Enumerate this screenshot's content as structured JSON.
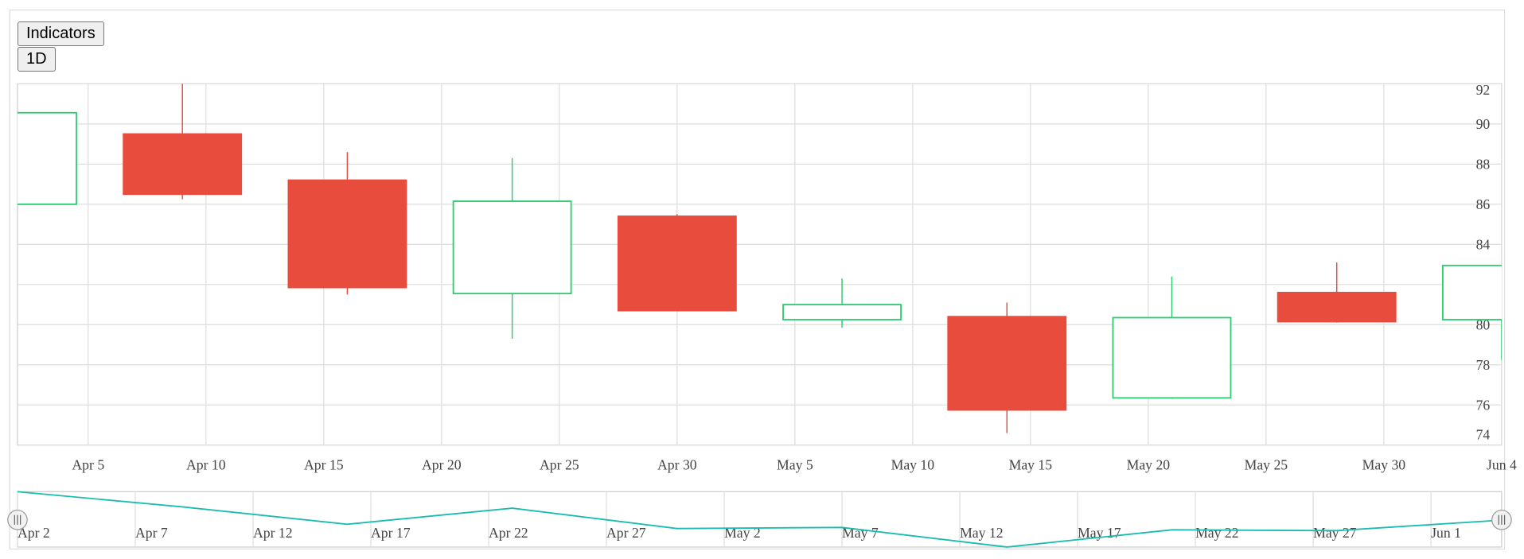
{
  "toolbar": {
    "buttons": [
      "Indicators",
      "1D"
    ]
  },
  "chart_data": {
    "type": "candlestick",
    "x": [
      "Apr 2",
      "Apr 9",
      "Apr 16",
      "Apr 23",
      "Apr 30",
      "May 7",
      "May 14",
      "May 21",
      "May 28",
      "Jun 4"
    ],
    "open": [
      86.0,
      89.5,
      87.2,
      81.55,
      85.4,
      80.25,
      80.4,
      76.35,
      81.6,
      80.25
    ],
    "high": [
      90.6,
      92.0,
      88.6,
      88.3,
      85.5,
      82.3,
      81.1,
      82.4,
      83.1,
      82.95
    ],
    "low": [
      86.0,
      86.25,
      81.5,
      79.3,
      80.7,
      79.85,
      74.6,
      76.3,
      80.1,
      78.25
    ],
    "close": [
      90.56,
      86.5,
      81.85,
      86.15,
      80.7,
      81.0,
      75.75,
      80.35,
      80.15,
      82.95
    ],
    "up_color": "#2ecc71",
    "down_color": "#e74c3c",
    "xlim": [
      "Apr 2",
      "Jun 4"
    ],
    "xticks": [
      "Apr 5",
      "Apr 10",
      "Apr 15",
      "Apr 20",
      "Apr 25",
      "Apr 30",
      "May 5",
      "May 10",
      "May 15",
      "May 20",
      "May 25",
      "May 30",
      "Jun 4"
    ],
    "ylim": [
      74,
      92
    ],
    "yticks": [
      74,
      76,
      78,
      80,
      82,
      84,
      86,
      88,
      90,
      92
    ],
    "grid": true,
    "navigator": {
      "color": "#1abcb0",
      "xticks": [
        "Apr 2",
        "Apr 7",
        "Apr 12",
        "Apr 17",
        "Apr 22",
        "Apr 27",
        "May 2",
        "May 7",
        "May 12",
        "May 17",
        "May 22",
        "May 27",
        "Jun 1"
      ]
    }
  }
}
